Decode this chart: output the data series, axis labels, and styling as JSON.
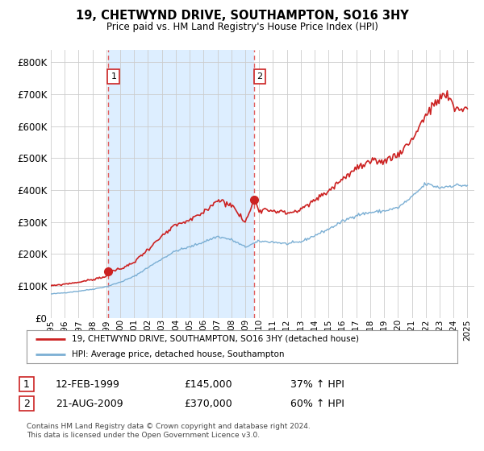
{
  "title": "19, CHETWYND DRIVE, SOUTHAMPTON, SO16 3HY",
  "subtitle": "Price paid vs. HM Land Registry's House Price Index (HPI)",
  "legend_line1": "19, CHETWYND DRIVE, SOUTHAMPTON, SO16 3HY (detached house)",
  "legend_line2": "HPI: Average price, detached house, Southampton",
  "annotation1_label": "1",
  "annotation1_date": "12-FEB-1999",
  "annotation1_price": "£145,000",
  "annotation1_hpi": "37% ↑ HPI",
  "annotation1_year": 1999.12,
  "annotation1_value": 145000,
  "annotation2_label": "2",
  "annotation2_date": "21-AUG-2009",
  "annotation2_price": "£370,000",
  "annotation2_hpi": "60% ↑ HPI",
  "annotation2_year": 2009.64,
  "annotation2_value": 370000,
  "footer": "Contains HM Land Registry data © Crown copyright and database right 2024.\nThis data is licensed under the Open Government Licence v3.0.",
  "hpi_color": "#7bafd4",
  "price_color": "#cc2222",
  "marker_color": "#cc2222",
  "vline_color": "#e06060",
  "shade_color": "#ddeeff",
  "background_color": "#ffffff",
  "grid_color": "#cccccc",
  "ylim": [
    0,
    840000
  ],
  "xlim_start": 1995.0,
  "xlim_end": 2025.5
}
